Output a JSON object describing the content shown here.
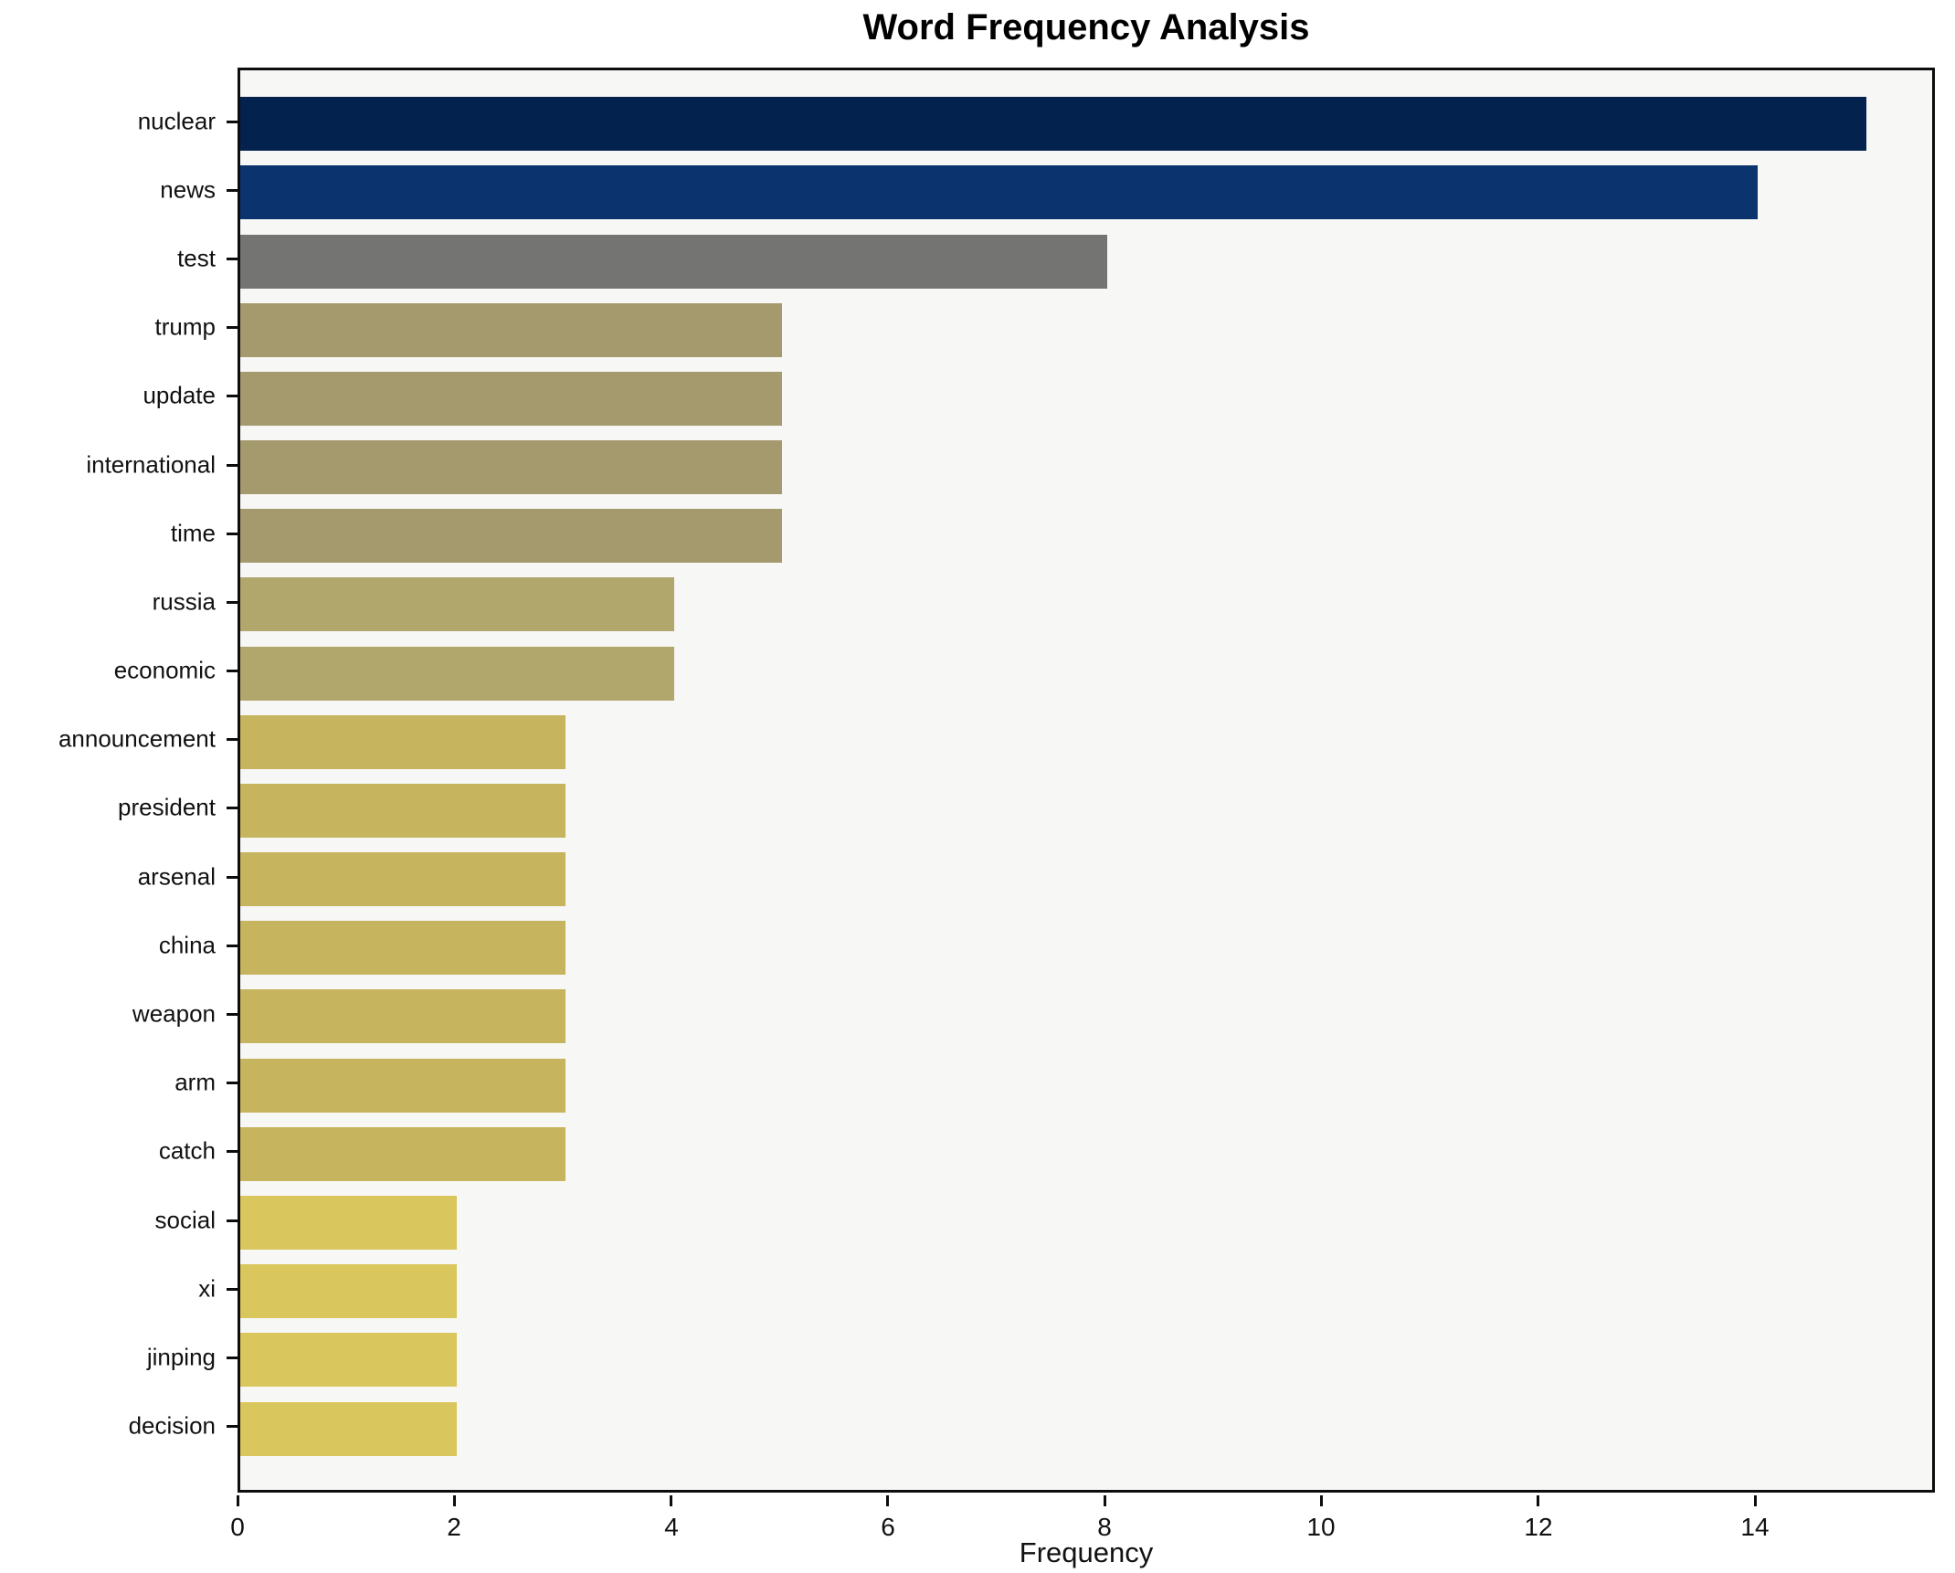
{
  "title": "Word Frequency Analysis",
  "chart_data": {
    "type": "bar",
    "orientation": "horizontal",
    "title": "Word Frequency Analysis",
    "xlabel": "Frequency",
    "ylabel": "",
    "categories": [
      "nuclear",
      "news",
      "test",
      "trump",
      "update",
      "international",
      "time",
      "russia",
      "economic",
      "announcement",
      "president",
      "arsenal",
      "china",
      "weapon",
      "arm",
      "catch",
      "social",
      "xi",
      "jinping",
      "decision"
    ],
    "values": [
      15,
      14,
      8,
      5,
      5,
      5,
      5,
      4,
      4,
      3,
      3,
      3,
      3,
      3,
      3,
      3,
      2,
      2,
      2,
      2
    ],
    "bar_colors": [
      "#04224e",
      "#0b346e",
      "#747473",
      "#a49a6e",
      "#a49a6e",
      "#a49a6e",
      "#a49a6e",
      "#b1a76c",
      "#b1a76c",
      "#c6b45f",
      "#c6b45f",
      "#c6b45f",
      "#c6b45f",
      "#c6b45f",
      "#c6b45f",
      "#c6b45f",
      "#d9c65c",
      "#d9c65c",
      "#d9c65c",
      "#d9c65c"
    ],
    "xticks": [
      0,
      2,
      4,
      6,
      8,
      10,
      12,
      14
    ],
    "xlim": [
      0,
      15.66
    ],
    "grid": false,
    "legend": null,
    "plot_background": "#f7f7f6",
    "figure_background": "#ffffff",
    "axis_color": "#0d0d0d"
  }
}
